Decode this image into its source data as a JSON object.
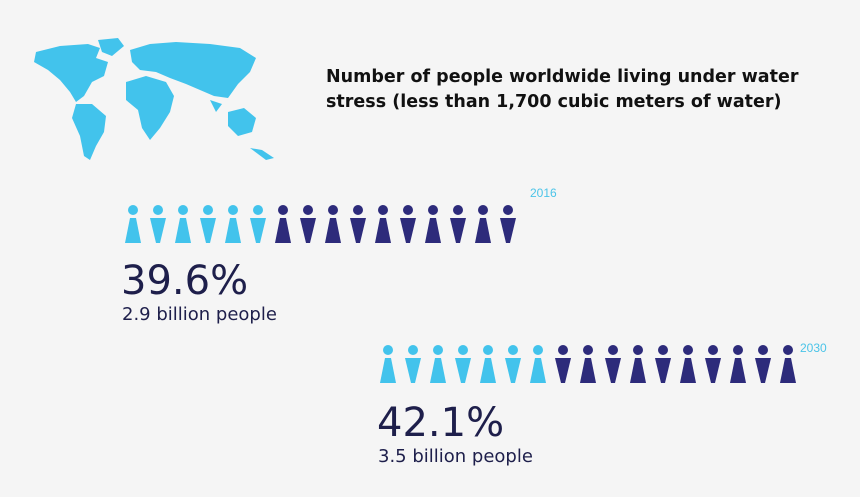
{
  "title": [
    "Number of people worldwide living under water",
    "stress (less than 1,700 cubic meters of water)"
  ],
  "groups": [
    {
      "year": "2016",
      "percent": "39.6%",
      "people": "2.9 billion people"
    },
    {
      "year": "2030",
      "percent": "42.1%",
      "people": "3.5 billion people"
    }
  ]
}
